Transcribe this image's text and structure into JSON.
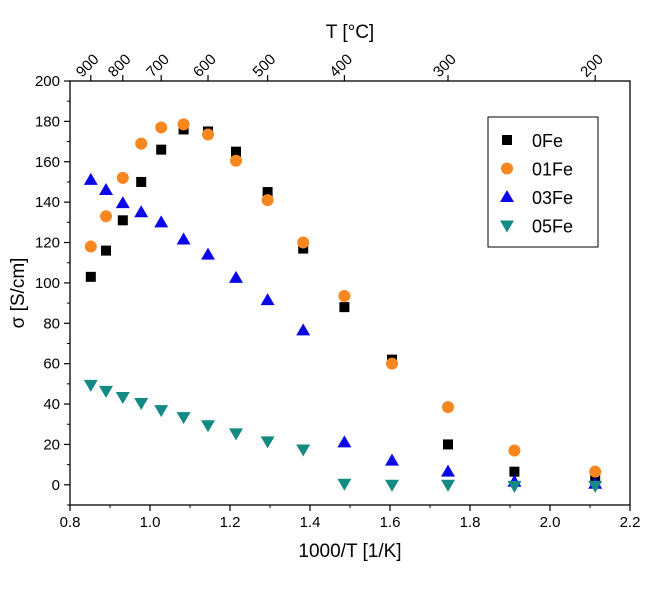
{
  "chart_data": {
    "type": "scatter",
    "xlabel": "1000/T [1/K]",
    "ylabel": "σ [S/cm]",
    "top_axis_label": "T [°C]",
    "xlim": [
      0.8,
      2.2
    ],
    "ylim": [
      -10,
      200
    ],
    "x_ticks": [
      "0.8",
      "1.0",
      "1.2",
      "1.4",
      "1.6",
      "1.8",
      "2.0",
      "2.2"
    ],
    "y_ticks": [
      "0",
      "20",
      "40",
      "60",
      "80",
      "100",
      "120",
      "140",
      "160",
      "180",
      "200"
    ],
    "top_ticks": [
      {
        "label": "900",
        "value": 0.852
      },
      {
        "label": "800",
        "value": 0.932
      },
      {
        "label": "700",
        "value": 1.028
      },
      {
        "label": "600",
        "value": 1.145
      },
      {
        "label": "500",
        "value": 1.294
      },
      {
        "label": "400",
        "value": 1.486
      },
      {
        "label": "300",
        "value": 1.745
      },
      {
        "label": "200",
        "value": 2.113
      }
    ],
    "grid": false,
    "legend_position": "top-right",
    "series": [
      {
        "name": "0Fe",
        "marker": "square",
        "color": "#000000",
        "points": [
          [
            0.852,
            103
          ],
          [
            0.89,
            116
          ],
          [
            0.932,
            131
          ],
          [
            0.978,
            150
          ],
          [
            1.028,
            166
          ],
          [
            1.084,
            176
          ],
          [
            1.145,
            175
          ],
          [
            1.215,
            165
          ],
          [
            1.294,
            145
          ],
          [
            1.383,
            117
          ],
          [
            1.486,
            88
          ],
          [
            1.605,
            62
          ],
          [
            1.745,
            20
          ],
          [
            1.911,
            6.5
          ],
          [
            2.113,
            2.5
          ]
        ]
      },
      {
        "name": "01Fe",
        "marker": "circle",
        "color": "#f7871e",
        "points": [
          [
            0.852,
            118
          ],
          [
            0.89,
            133
          ],
          [
            0.932,
            152
          ],
          [
            0.978,
            169
          ],
          [
            1.028,
            177
          ],
          [
            1.084,
            178.5
          ],
          [
            1.145,
            173.5
          ],
          [
            1.215,
            160.5
          ],
          [
            1.294,
            141
          ],
          [
            1.383,
            120
          ],
          [
            1.486,
            93.5
          ],
          [
            1.605,
            60
          ],
          [
            1.745,
            38.5
          ],
          [
            1.911,
            17
          ],
          [
            2.113,
            6.5
          ]
        ]
      },
      {
        "name": "03Fe",
        "marker": "triangle-up",
        "color": "#0b06e8",
        "points": [
          [
            0.852,
            151
          ],
          [
            0.89,
            146
          ],
          [
            0.932,
            139.5
          ],
          [
            0.978,
            135
          ],
          [
            1.028,
            130
          ],
          [
            1.084,
            121.5
          ],
          [
            1.145,
            114
          ],
          [
            1.215,
            102.5
          ],
          [
            1.294,
            91.5
          ],
          [
            1.383,
            76.5
          ],
          [
            1.486,
            21
          ],
          [
            1.605,
            12
          ],
          [
            1.745,
            6.5
          ],
          [
            1.911,
            1.5
          ],
          [
            2.113,
            0.5
          ]
        ]
      },
      {
        "name": "05Fe",
        "marker": "triangle-down",
        "color": "#148a84",
        "points": [
          [
            0.852,
            49.5
          ],
          [
            0.89,
            46.5
          ],
          [
            0.932,
            43.5
          ],
          [
            0.978,
            40.5
          ],
          [
            1.028,
            37
          ],
          [
            1.084,
            33.5
          ],
          [
            1.145,
            29.5
          ],
          [
            1.215,
            25.5
          ],
          [
            1.294,
            21.5
          ],
          [
            1.383,
            17.5
          ],
          [
            1.486,
            0.5
          ],
          [
            1.605,
            0
          ],
          [
            1.745,
            0
          ],
          [
            1.911,
            -0.5
          ],
          [
            2.113,
            -0.5
          ]
        ]
      }
    ]
  }
}
